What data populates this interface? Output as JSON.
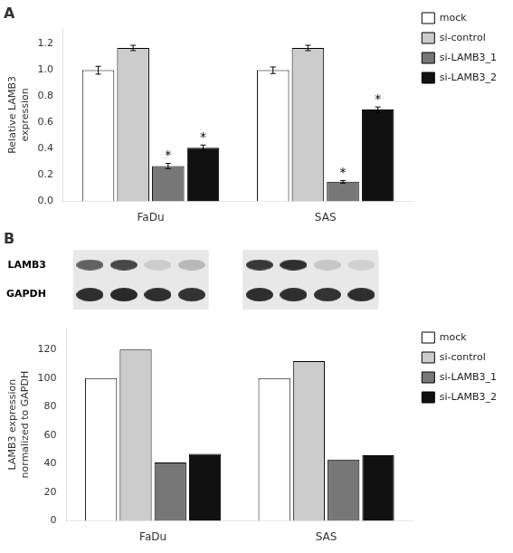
{
  "chart_data": [
    {
      "type": "bar",
      "title": "A",
      "ylabel": "Relative LAMB3\nexpression",
      "categories": [
        "FaDu",
        "SAS"
      ],
      "series": [
        {
          "name": "mock",
          "color": "#ffffff",
          "values": [
            1.0,
            1.0
          ],
          "errors": [
            0.03,
            0.025
          ]
        },
        {
          "name": "si-control",
          "color": "#cccccc",
          "values": [
            1.17,
            1.17
          ],
          "errors": [
            0.02,
            0.02
          ]
        },
        {
          "name": "si-LAMB3_1",
          "color": "#777777",
          "values": [
            0.27,
            0.15
          ],
          "errors": [
            0.02,
            0.01
          ]
        },
        {
          "name": "si-LAMB3_2",
          "color": "#111111",
          "values": [
            0.41,
            0.7
          ],
          "errors": [
            0.02,
            0.02
          ]
        }
      ],
      "annotations": [
        {
          "text": "*",
          "series": "si-LAMB3_1",
          "category": "FaDu"
        },
        {
          "text": "*",
          "series": "si-LAMB3_2",
          "category": "FaDu"
        },
        {
          "text": "*",
          "series": "si-LAMB3_1",
          "category": "SAS"
        },
        {
          "text": "*",
          "series": "si-LAMB3_2",
          "category": "SAS"
        }
      ],
      "ylim": [
        0,
        1.32
      ],
      "yticks": [
        {
          "value": 0,
          "label": "0.0"
        },
        0.2,
        0.4,
        0.6,
        0.8,
        {
          "value": 1.0,
          "label": "1.0"
        },
        1.2
      ],
      "grid": false,
      "legend": "right"
    },
    {
      "type": "heatmap",
      "title": "B",
      "categories": [
        "LAMB3",
        "GAPDH"
      ],
      "cells": [
        [
          [
            0.62,
            0.72,
            0.2,
            0.28
          ],
          [
            0.82,
            0.84,
            0.82,
            0.8
          ]
        ],
        [
          [
            0.78,
            0.82,
            0.22,
            0.18
          ],
          [
            0.82,
            0.82,
            0.8,
            0.82
          ]
        ]
      ],
      "tick_labels": "y"
    },
    {
      "type": "bar",
      "ylabel": "LAMB3 expression\nnormalized to GAPDH",
      "categories": [
        "FaDu",
        "SAS"
      ],
      "series": [
        {
          "name": "mock",
          "color": "#ffffff",
          "values": [
            100,
            100
          ]
        },
        {
          "name": "si-control",
          "color": "#cccccc",
          "values": [
            120,
            112
          ]
        },
        {
          "name": "si-LAMB3_1",
          "color": "#777777",
          "values": [
            41,
            43
          ]
        },
        {
          "name": "si-LAMB3_2",
          "color": "#111111",
          "values": [
            47,
            46
          ]
        }
      ],
      "ylim": [
        0,
        135
      ],
      "yticks": [
        0,
        20,
        40,
        60,
        80,
        100,
        120
      ],
      "grid": false,
      "legend": "right"
    }
  ]
}
